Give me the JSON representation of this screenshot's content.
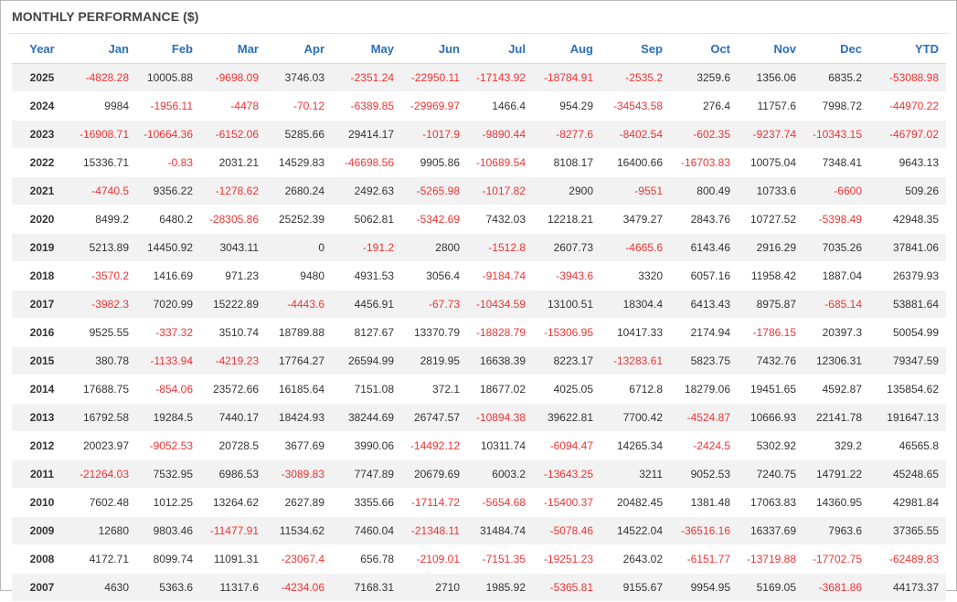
{
  "title": "MONTHLY PERFORMANCE ($)",
  "columns": [
    "Year",
    "Jan",
    "Feb",
    "Mar",
    "Apr",
    "May",
    "Jun",
    "Jul",
    "Aug",
    "Sep",
    "Oct",
    "Nov",
    "Dec",
    "YTD"
  ],
  "rows": [
    [
      "2025",
      "-4828.28",
      "10005.88",
      "-9698.09",
      "3746.03",
      "-2351.24",
      "-22950.11",
      "-17143.92",
      "-18784.91",
      "-2535.2",
      "3259.6",
      "1356.06",
      "6835.2",
      "-53088.98"
    ],
    [
      "2024",
      "9984",
      "-1956.11",
      "-4478",
      "-70.12",
      "-6389.85",
      "-29969.97",
      "1466.4",
      "954.29",
      "-34543.58",
      "276.4",
      "11757.6",
      "7998.72",
      "-44970.22"
    ],
    [
      "2023",
      "-16908.71",
      "-10664.36",
      "-6152.06",
      "5285.66",
      "29414.17",
      "-1017.9",
      "-9890.44",
      "-8277.6",
      "-8402.54",
      "-602.35",
      "-9237.74",
      "-10343.15",
      "-46797.02"
    ],
    [
      "2022",
      "15336.71",
      "-0.83",
      "2031.21",
      "14529.83",
      "-46698.56",
      "9905.86",
      "-10689.54",
      "8108.17",
      "16400.66",
      "-16703.83",
      "10075.04",
      "7348.41",
      "9643.13"
    ],
    [
      "2021",
      "-4740.5",
      "9356.22",
      "-1278.62",
      "2680.24",
      "2492.63",
      "-5265.98",
      "-1017.82",
      "2900",
      "-9551",
      "800.49",
      "10733.6",
      "-6600",
      "509.26"
    ],
    [
      "2020",
      "8499.2",
      "6480.2",
      "-28305.86",
      "25252.39",
      "5062.81",
      "-5342.69",
      "7432.03",
      "12218.21",
      "3479.27",
      "2843.76",
      "10727.52",
      "-5398.49",
      "42948.35"
    ],
    [
      "2019",
      "5213.89",
      "14450.92",
      "3043.11",
      "0",
      "-191.2",
      "2800",
      "-1512.8",
      "2607.73",
      "-4665.6",
      "6143.46",
      "2916.29",
      "7035.26",
      "37841.06"
    ],
    [
      "2018",
      "-3570.2",
      "1416.69",
      "971.23",
      "9480",
      "4931.53",
      "3056.4",
      "-9184.74",
      "-3943.6",
      "3320",
      "6057.16",
      "11958.42",
      "1887.04",
      "26379.93"
    ],
    [
      "2017",
      "-3982.3",
      "7020.99",
      "15222.89",
      "-4443.6",
      "4456.91",
      "-67.73",
      "-10434.59",
      "13100.51",
      "18304.4",
      "6413.43",
      "8975.87",
      "-685.14",
      "53881.64"
    ],
    [
      "2016",
      "9525.55",
      "-337.32",
      "3510.74",
      "18789.88",
      "8127.67",
      "13370.79",
      "-18828.79",
      "-15306.95",
      "10417.33",
      "2174.94",
      "-1786.15",
      "20397.3",
      "50054.99"
    ],
    [
      "2015",
      "380.78",
      "-1133.94",
      "-4219.23",
      "17764.27",
      "26594.99",
      "2819.95",
      "16638.39",
      "8223.17",
      "-13283.61",
      "5823.75",
      "7432.76",
      "12306.31",
      "79347.59"
    ],
    [
      "2014",
      "17688.75",
      "-854.06",
      "23572.66",
      "16185.64",
      "7151.08",
      "372.1",
      "18677.02",
      "4025.05",
      "6712.8",
      "18279.06",
      "19451.65",
      "4592.87",
      "135854.62"
    ],
    [
      "2013",
      "16792.58",
      "19284.5",
      "7440.17",
      "18424.93",
      "38244.69",
      "26747.57",
      "-10894.38",
      "39622.81",
      "7700.42",
      "-4524.87",
      "10666.93",
      "22141.78",
      "191647.13"
    ],
    [
      "2012",
      "20023.97",
      "-9052.53",
      "20728.5",
      "3677.69",
      "3990.06",
      "-14492.12",
      "10311.74",
      "-6094.47",
      "14265.34",
      "-2424.5",
      "5302.92",
      "329.2",
      "46565.8"
    ],
    [
      "2011",
      "-21264.03",
      "7532.95",
      "6986.53",
      "-3089.83",
      "7747.89",
      "20679.69",
      "6003.2",
      "-13643.25",
      "3211",
      "9052.53",
      "7240.75",
      "14791.22",
      "45248.65"
    ],
    [
      "2010",
      "7602.48",
      "1012.25",
      "13264.62",
      "2627.89",
      "3355.66",
      "-17114.72",
      "-5654.68",
      "-15400.37",
      "20482.45",
      "1381.48",
      "17063.83",
      "14360.95",
      "42981.84"
    ],
    [
      "2009",
      "12680",
      "9803.46",
      "-11477.91",
      "11534.62",
      "7460.04",
      "-21348.11",
      "31484.74",
      "-5078.46",
      "14522.04",
      "-36516.16",
      "16337.69",
      "7963.6",
      "37365.55"
    ],
    [
      "2008",
      "4172.71",
      "8099.74",
      "11091.31",
      "-23067.4",
      "656.78",
      "-2109.01",
      "-7151.35",
      "-19251.23",
      "2643.02",
      "-6151.77",
      "-13719.88",
      "-17702.75",
      "-62489.83"
    ],
    [
      "2007",
      "4630",
      "5363.6",
      "11317.6",
      "-4234.06",
      "7168.31",
      "2710",
      "1985.92",
      "-5365.81",
      "9155.67",
      "9954.95",
      "5169.05",
      "-3681.86",
      "44173.37"
    ]
  ],
  "colors": {
    "header_text": "#2a6ebb",
    "negative_text": "#ee3333",
    "positive_text": "#333333",
    "stripe_bg": "#f2f2f2"
  }
}
